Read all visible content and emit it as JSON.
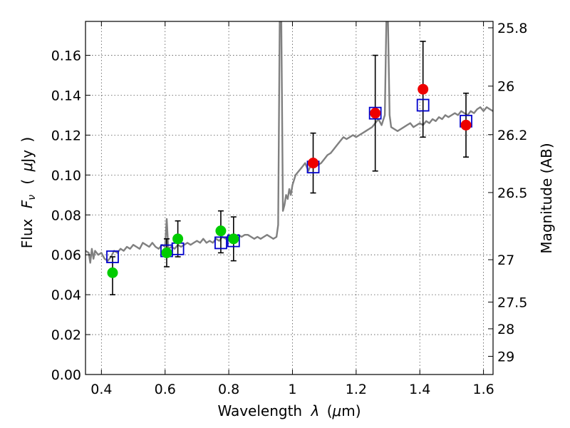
{
  "chart_data": {
    "type": "scatter",
    "title": "",
    "xlabel_text": "Wavelength",
    "xlabel_symbol": "λ",
    "xlabel_unit_open": "(",
    "xlabel_unit_mu": "μ",
    "xlabel_unit_rest": "m)",
    "ylabel_flux": "Flux",
    "ylabel_F": "F",
    "ylabel_nu": "ν",
    "ylabel_unit_open": "(",
    "ylabel_unit_mu": "μ",
    "ylabel_unit_rest": "Jy",
    "ylabel_unit_close": ")",
    "y2label": "Magnitude (AB)",
    "xlim": [
      0.35,
      1.63
    ],
    "ylim": [
      0.0,
      0.177
    ],
    "grid": true,
    "x_ticks": [
      {
        "value": 0.4,
        "label": "0.4"
      },
      {
        "value": 0.6,
        "label": "0.6"
      },
      {
        "value": 0.8,
        "label": "0.8"
      },
      {
        "value": 1.0,
        "label": "1"
      },
      {
        "value": 1.2,
        "label": "1.2"
      },
      {
        "value": 1.4,
        "label": "1.4"
      },
      {
        "value": 1.6,
        "label": "1.6"
      }
    ],
    "y_ticks": [
      {
        "value": 0.0,
        "label": "0.00"
      },
      {
        "value": 0.02,
        "label": "0.02"
      },
      {
        "value": 0.04,
        "label": "0.04"
      },
      {
        "value": 0.06,
        "label": "0.06"
      },
      {
        "value": 0.08,
        "label": "0.08"
      },
      {
        "value": 0.1,
        "label": "0.10"
      },
      {
        "value": 0.12,
        "label": "0.12"
      },
      {
        "value": 0.14,
        "label": "0.14"
      },
      {
        "value": 0.16,
        "label": "0.16"
      }
    ],
    "mag_ticks": [
      {
        "mag": 25.8,
        "label": "25.8"
      },
      {
        "mag": 26.0,
        "label": "26"
      },
      {
        "mag": 26.2,
        "label": "26.2"
      },
      {
        "mag": 26.5,
        "label": "26.5"
      },
      {
        "mag": 27.0,
        "label": "27"
      },
      {
        "mag": 27.5,
        "label": "27.5"
      },
      {
        "mag": 28.0,
        "label": "28"
      },
      {
        "mag": 29.0,
        "label": "29"
      }
    ],
    "spectrum_color": "#808080",
    "spectrum": [
      [
        0.35,
        0.062
      ],
      [
        0.36,
        0.061
      ],
      [
        0.365,
        0.056
      ],
      [
        0.37,
        0.063
      ],
      [
        0.375,
        0.058
      ],
      [
        0.38,
        0.062
      ],
      [
        0.39,
        0.06
      ],
      [
        0.4,
        0.061
      ],
      [
        0.41,
        0.058
      ],
      [
        0.42,
        0.057
      ],
      [
        0.43,
        0.059
      ],
      [
        0.44,
        0.062
      ],
      [
        0.45,
        0.061
      ],
      [
        0.46,
        0.063
      ],
      [
        0.47,
        0.062
      ],
      [
        0.48,
        0.064
      ],
      [
        0.49,
        0.063
      ],
      [
        0.5,
        0.065
      ],
      [
        0.51,
        0.064
      ],
      [
        0.52,
        0.063
      ],
      [
        0.53,
        0.066
      ],
      [
        0.54,
        0.065
      ],
      [
        0.55,
        0.064
      ],
      [
        0.56,
        0.066
      ],
      [
        0.57,
        0.064
      ],
      [
        0.58,
        0.063
      ],
      [
        0.59,
        0.065
      ],
      [
        0.6,
        0.064
      ],
      [
        0.605,
        0.078
      ],
      [
        0.61,
        0.063
      ],
      [
        0.62,
        0.064
      ],
      [
        0.63,
        0.063
      ],
      [
        0.64,
        0.065
      ],
      [
        0.65,
        0.064
      ],
      [
        0.66,
        0.065
      ],
      [
        0.67,
        0.066
      ],
      [
        0.68,
        0.065
      ],
      [
        0.69,
        0.066
      ],
      [
        0.7,
        0.067
      ],
      [
        0.71,
        0.066
      ],
      [
        0.72,
        0.068
      ],
      [
        0.73,
        0.066
      ],
      [
        0.74,
        0.067
      ],
      [
        0.75,
        0.066
      ],
      [
        0.76,
        0.068
      ],
      [
        0.77,
        0.067
      ],
      [
        0.78,
        0.069
      ],
      [
        0.79,
        0.068
      ],
      [
        0.8,
        0.07
      ],
      [
        0.81,
        0.068
      ],
      [
        0.82,
        0.069
      ],
      [
        0.83,
        0.07
      ],
      [
        0.84,
        0.069
      ],
      [
        0.85,
        0.07
      ],
      [
        0.86,
        0.07
      ],
      [
        0.87,
        0.069
      ],
      [
        0.88,
        0.068
      ],
      [
        0.89,
        0.069
      ],
      [
        0.9,
        0.068
      ],
      [
        0.91,
        0.069
      ],
      [
        0.92,
        0.07
      ],
      [
        0.93,
        0.069
      ],
      [
        0.94,
        0.068
      ],
      [
        0.95,
        0.069
      ],
      [
        0.955,
        0.075
      ],
      [
        0.96,
        0.178
      ],
      [
        0.965,
        0.178
      ],
      [
        0.97,
        0.082
      ],
      [
        0.975,
        0.085
      ],
      [
        0.98,
        0.09
      ],
      [
        0.985,
        0.088
      ],
      [
        0.99,
        0.093
      ],
      [
        0.995,
        0.09
      ],
      [
        1.0,
        0.095
      ],
      [
        1.01,
        0.1
      ],
      [
        1.02,
        0.102
      ],
      [
        1.03,
        0.104
      ],
      [
        1.04,
        0.106
      ],
      [
        1.05,
        0.102
      ],
      [
        1.06,
        0.106
      ],
      [
        1.07,
        0.104
      ],
      [
        1.08,
        0.105
      ],
      [
        1.09,
        0.106
      ],
      [
        1.1,
        0.108
      ],
      [
        1.11,
        0.11
      ],
      [
        1.12,
        0.111
      ],
      [
        1.13,
        0.113
      ],
      [
        1.14,
        0.115
      ],
      [
        1.15,
        0.117
      ],
      [
        1.16,
        0.119
      ],
      [
        1.17,
        0.118
      ],
      [
        1.18,
        0.119
      ],
      [
        1.19,
        0.12
      ],
      [
        1.2,
        0.119
      ],
      [
        1.21,
        0.12
      ],
      [
        1.22,
        0.121
      ],
      [
        1.23,
        0.122
      ],
      [
        1.24,
        0.123
      ],
      [
        1.25,
        0.124
      ],
      [
        1.26,
        0.126
      ],
      [
        1.27,
        0.128
      ],
      [
        1.28,
        0.125
      ],
      [
        1.29,
        0.13
      ],
      [
        1.295,
        0.178
      ],
      [
        1.3,
        0.178
      ],
      [
        1.305,
        0.13
      ],
      [
        1.31,
        0.124
      ],
      [
        1.32,
        0.123
      ],
      [
        1.33,
        0.122
      ],
      [
        1.34,
        0.123
      ],
      [
        1.35,
        0.124
      ],
      [
        1.36,
        0.125
      ],
      [
        1.37,
        0.126
      ],
      [
        1.38,
        0.124
      ],
      [
        1.39,
        0.125
      ],
      [
        1.4,
        0.126
      ],
      [
        1.41,
        0.125
      ],
      [
        1.42,
        0.127
      ],
      [
        1.43,
        0.126
      ],
      [
        1.44,
        0.128
      ],
      [
        1.45,
        0.127
      ],
      [
        1.46,
        0.129
      ],
      [
        1.47,
        0.128
      ],
      [
        1.48,
        0.13
      ],
      [
        1.49,
        0.129
      ],
      [
        1.5,
        0.13
      ],
      [
        1.51,
        0.131
      ],
      [
        1.52,
        0.13
      ],
      [
        1.53,
        0.132
      ],
      [
        1.54,
        0.131
      ],
      [
        1.55,
        0.13
      ],
      [
        1.56,
        0.132
      ],
      [
        1.57,
        0.131
      ],
      [
        1.58,
        0.133
      ],
      [
        1.59,
        0.134
      ],
      [
        1.6,
        0.132
      ],
      [
        1.61,
        0.134
      ],
      [
        1.62,
        0.133
      ],
      [
        1.63,
        0.132
      ]
    ],
    "model_points": {
      "marker": "open-square",
      "color": "#0000cc",
      "points": [
        {
          "x": 0.435,
          "y": 0.059
        },
        {
          "x": 0.605,
          "y": 0.062
        },
        {
          "x": 0.64,
          "y": 0.063
        },
        {
          "x": 0.775,
          "y": 0.066
        },
        {
          "x": 0.815,
          "y": 0.067
        },
        {
          "x": 1.065,
          "y": 0.104
        },
        {
          "x": 1.26,
          "y": 0.131
        },
        {
          "x": 1.41,
          "y": 0.135
        },
        {
          "x": 1.545,
          "y": 0.127
        }
      ]
    },
    "observed_optical": {
      "marker": "filled-circle",
      "color": "#00cc00",
      "points": [
        {
          "x": 0.435,
          "y": 0.051,
          "err_low": 0.011,
          "err_high": 0.008
        },
        {
          "x": 0.605,
          "y": 0.061,
          "err_low": 0.007,
          "err_high": 0.007
        },
        {
          "x": 0.64,
          "y": 0.068,
          "err_low": 0.009,
          "err_high": 0.009
        },
        {
          "x": 0.775,
          "y": 0.072,
          "err_low": 0.011,
          "err_high": 0.01
        },
        {
          "x": 0.815,
          "y": 0.068,
          "err_low": 0.011,
          "err_high": 0.011
        }
      ]
    },
    "observed_infrared": {
      "marker": "filled-circle",
      "color": "#ee0000",
      "points": [
        {
          "x": 1.065,
          "y": 0.106,
          "err_low": 0.015,
          "err_high": 0.015
        },
        {
          "x": 1.26,
          "y": 0.131,
          "err_low": 0.029,
          "err_high": 0.029
        },
        {
          "x": 1.41,
          "y": 0.143,
          "err_low": 0.024,
          "err_high": 0.024
        },
        {
          "x": 1.545,
          "y": 0.125,
          "err_low": 0.016,
          "err_high": 0.016
        }
      ]
    }
  }
}
